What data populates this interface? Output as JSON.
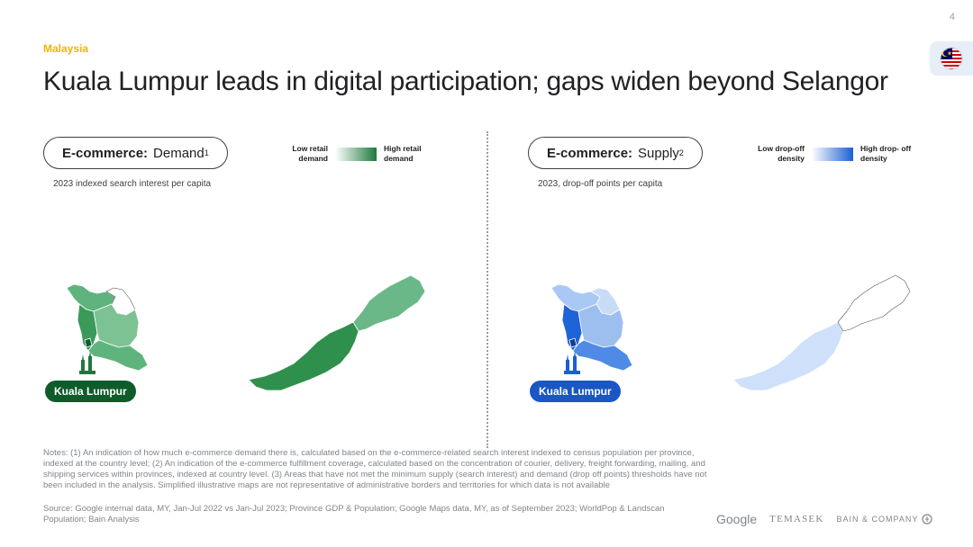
{
  "page_number": "4",
  "section_label": "Malaysia",
  "headline": "Kuala Lumpur leads in digital participation; gaps widen beyond Selangor",
  "flag_icon": "malaysia-flag-icon",
  "demand_panel": {
    "pill_bold": "E-commerce:",
    "pill_text": "Demand",
    "pill_sup": "1",
    "subtitle": "2023 indexed search interest per capita",
    "legend_low": "Low retail demand",
    "legend_high": "High retail demand",
    "city_label": "Kuala Lumpur",
    "color": "#1e7a3c"
  },
  "supply_panel": {
    "pill_bold": "E-commerce:",
    "pill_text": "Supply",
    "pill_sup": "2",
    "subtitle": "2023, drop-off points per capita",
    "legend_low": "Low drop-off density",
    "legend_high": "High drop- off density",
    "city_label": "Kuala Lumpur",
    "color": "#1a5fd6"
  },
  "notes": "Notes: (1) An indication of how much e-commerce demand there is, calculated based on the e-commerce-related search interest indexed to census population per province, indexed  at the country level; (2) An indication of the e-commerce fulfillment coverage, calculated based on the concentration of courier, delivery, freight forwarding, mailing, and shipping services within provinces, indexed at country level. (3) Areas that have not met the minimum supply (search interest) and demand (drop off points) thresholds have not been included in the analysis. Simplified illustrative maps are not representative of administrative borders and territories for which data is not available",
  "source": "Source: Google internal data, MY, Jan-Jul 2022 vs Jan-Jul 2023; Province GDP & Population; Google Maps data, MY, as of September 2023; WorldPop & Landscan Population; Bain Analysis",
  "logos": {
    "google": "Google",
    "temasek": "TEMASEK",
    "bain": "BAIN & COMPANY"
  }
}
